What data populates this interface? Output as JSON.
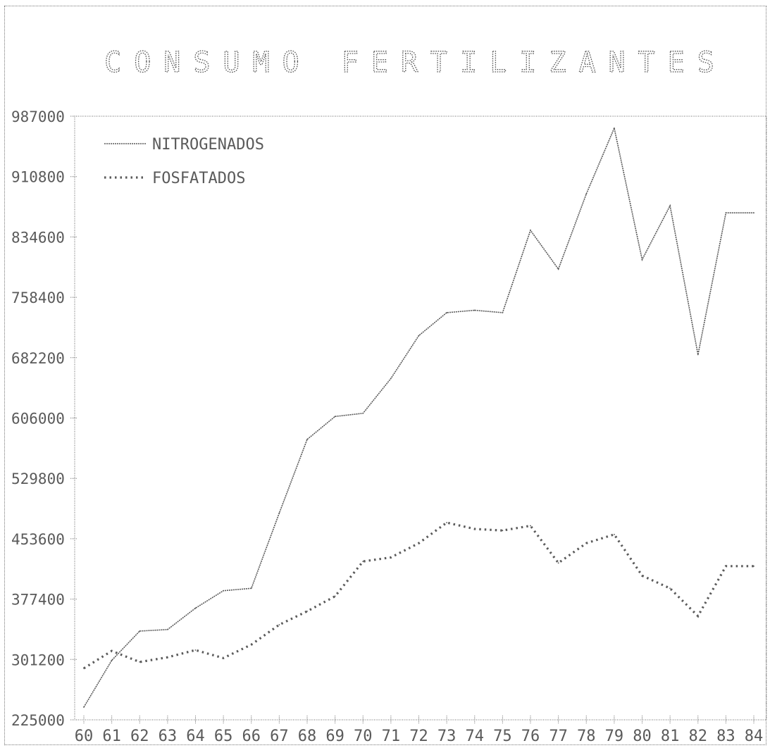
{
  "chart_data": {
    "type": "line",
    "title": "CONSUMO FERTILIZANTES",
    "xlabel": "",
    "ylabel": "",
    "categories": [
      "60",
      "61",
      "62",
      "63",
      "64",
      "65",
      "66",
      "67",
      "68",
      "69",
      "70",
      "71",
      "72",
      "73",
      "74",
      "75",
      "76",
      "77",
      "78",
      "79",
      "80",
      "81",
      "82",
      "83",
      "84"
    ],
    "ylim": [
      225000,
      987000
    ],
    "yticks": [
      "225000",
      "301200",
      "377400",
      "453600",
      "529800",
      "606000",
      "682200",
      "758400",
      "834600",
      "910800",
      "987000"
    ],
    "legend_position": "top-left",
    "series": [
      {
        "name": "NITROGENADOS",
        "style": "solid",
        "values": [
          241000,
          300000,
          337000,
          339000,
          366000,
          388000,
          391000,
          486000,
          579000,
          608000,
          612000,
          656000,
          710000,
          739000,
          742000,
          739000,
          843000,
          794000,
          889000,
          972000,
          806000,
          874000,
          686000,
          865000,
          865000
        ]
      },
      {
        "name": "FOSFATADOS",
        "style": "dotted",
        "values": [
          290000,
          312000,
          298000,
          304000,
          313000,
          303000,
          320000,
          345000,
          362000,
          381000,
          425000,
          430000,
          448000,
          474000,
          466000,
          464000,
          470000,
          423000,
          448000,
          459000,
          407000,
          391000,
          356000,
          419000,
          419000
        ]
      }
    ]
  },
  "colors": {
    "ink": "#5a5a5a",
    "background": "#ffffff"
  }
}
